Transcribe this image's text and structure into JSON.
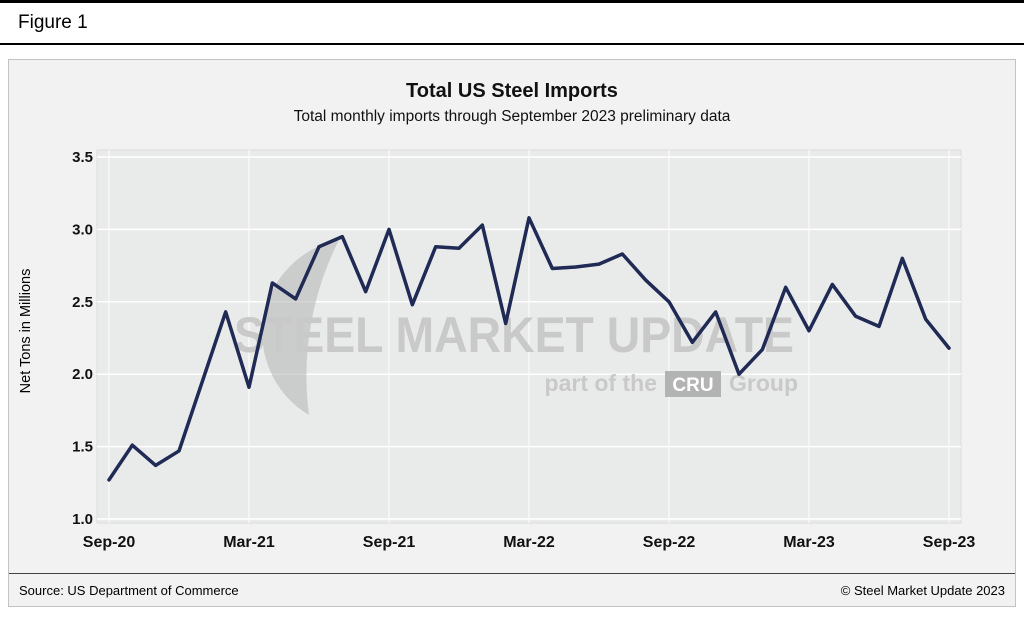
{
  "header": {
    "figure_label": "Figure 1"
  },
  "chart": {
    "title": "Total US Steel Imports",
    "subtitle": "Total monthly imports through September 2023 preliminary data",
    "y_axis_label": "Net Tons in Millions",
    "watermark": {
      "line1": "STEEL MARKET UPDATE",
      "part_of": "part of the",
      "cru": "CRU",
      "group": "Group"
    },
    "colors": {
      "line": "#1f2a55",
      "plot_bg": "#e9eaea",
      "panel_bg": "#f2f2f2",
      "grid": "#ffffff",
      "watermark_text": "#c9c9c9",
      "watermark_shape": "#b3b3b3"
    }
  },
  "footer": {
    "source": "Source: US Department of Commerce",
    "copyright": "© Steel Market Update 2023"
  },
  "chart_data": {
    "type": "line",
    "title": "Total US Steel Imports",
    "subtitle": "Total monthly imports through September 2023 preliminary data",
    "ylabel": "Net Tons in Millions",
    "xlabel": "",
    "x": [
      "Sep-20",
      "Oct-20",
      "Nov-20",
      "Dec-20",
      "Jan-21",
      "Feb-21",
      "Mar-21",
      "Apr-21",
      "May-21",
      "Jun-21",
      "Jul-21",
      "Aug-21",
      "Sep-21",
      "Oct-21",
      "Nov-21",
      "Dec-21",
      "Jan-22",
      "Feb-22",
      "Mar-22",
      "Apr-22",
      "May-22",
      "Jun-22",
      "Jul-22",
      "Aug-22",
      "Sep-22",
      "Oct-22",
      "Nov-22",
      "Dec-22",
      "Jan-23",
      "Feb-23",
      "Mar-23",
      "Apr-23",
      "May-23",
      "Jun-23",
      "Jul-23",
      "Aug-23",
      "Sep-23"
    ],
    "values": [
      1.27,
      1.51,
      1.37,
      1.47,
      1.95,
      2.43,
      1.91,
      2.63,
      2.52,
      2.88,
      2.95,
      2.57,
      3.0,
      2.48,
      2.88,
      2.87,
      3.03,
      2.35,
      3.08,
      2.73,
      2.74,
      2.76,
      2.83,
      2.65,
      2.5,
      2.22,
      2.43,
      2.0,
      2.17,
      2.6,
      2.3,
      2.62,
      2.4,
      2.33,
      2.8,
      2.38,
      2.18
    ],
    "x_tick_labels": [
      "Sep-20",
      "Mar-21",
      "Sep-21",
      "Mar-22",
      "Sep-22",
      "Mar-23",
      "Sep-23"
    ],
    "y_ticks": [
      1.0,
      1.5,
      2.0,
      2.5,
      3.0,
      3.5
    ],
    "ylim": [
      1.0,
      3.5
    ],
    "grid": true,
    "legend": false,
    "line_color": "#1f2a55"
  }
}
